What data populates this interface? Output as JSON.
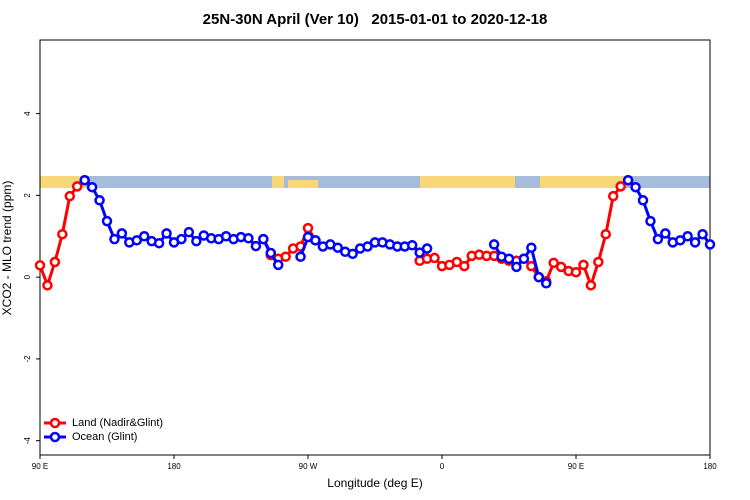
{
  "chart_data": {
    "type": "line",
    "title": "25N-30N April (Ver 10)   2015-01-01 to 2020-12-18",
    "x_label": "Longitude (deg E)",
    "y_label": "XCO2 - MLO trend (ppm)",
    "x": [
      90,
      95,
      100,
      105,
      110,
      115,
      120,
      125,
      130,
      135,
      140,
      145,
      150,
      155,
      160,
      165,
      170,
      175,
      180,
      185,
      190,
      195,
      200,
      205,
      210,
      215,
      220,
      225,
      230,
      235,
      240,
      245,
      250,
      255,
      260,
      265,
      270,
      275,
      280,
      285,
      290,
      295,
      300,
      305,
      310,
      315,
      320,
      325,
      330,
      335,
      340,
      345,
      350,
      355,
      360,
      365,
      370,
      375,
      380,
      385,
      390,
      395,
      400,
      405,
      410,
      415,
      420,
      425,
      430,
      435,
      440,
      445,
      450,
      455,
      460,
      465,
      470,
      475,
      480,
      485,
      490,
      495,
      500,
      505,
      510,
      515,
      520,
      525,
      530,
      535,
      540
    ],
    "series": [
      {
        "name": "Land (Nadir&Glint)",
        "color": "#ff0000",
        "values": [
          0.29,
          -0.2,
          0.37,
          1.05,
          1.98,
          2.22,
          2.37,
          null,
          null,
          null,
          null,
          null,
          null,
          null,
          null,
          null,
          null,
          null,
          null,
          null,
          null,
          null,
          null,
          null,
          null,
          null,
          null,
          null,
          null,
          null,
          0.93,
          0.54,
          0.45,
          0.5,
          0.7,
          0.75,
          1.2,
          0.9,
          null,
          null,
          null,
          null,
          null,
          null,
          null,
          null,
          null,
          null,
          null,
          null,
          null,
          0.4,
          0.45,
          0.47,
          0.27,
          0.3,
          0.37,
          0.27,
          0.52,
          0.55,
          0.52,
          0.52,
          0.45,
          0.4,
          0.4,
          0.45,
          0.27,
          0.0,
          -0.1,
          0.35,
          0.25,
          0.15,
          0.12,
          0.3,
          -0.2,
          0.37,
          1.05,
          1.98,
          2.22,
          2.37,
          null,
          null,
          null,
          null,
          null,
          null,
          null,
          null,
          null,
          null,
          null
        ]
      },
      {
        "name": "Ocean (Glint)",
        "color": "#0000ff",
        "values": [
          null,
          null,
          null,
          null,
          null,
          null,
          2.37,
          2.2,
          1.88,
          1.37,
          0.93,
          1.07,
          0.85,
          0.9,
          1.0,
          0.88,
          0.83,
          1.07,
          0.85,
          0.93,
          1.1,
          0.88,
          1.02,
          0.95,
          0.93,
          1.0,
          0.93,
          0.98,
          0.95,
          0.76,
          0.93,
          0.59,
          0.3,
          null,
          null,
          0.5,
          0.98,
          0.9,
          0.75,
          0.8,
          0.72,
          0.62,
          0.57,
          0.7,
          0.75,
          0.85,
          0.85,
          0.8,
          0.75,
          0.75,
          0.78,
          0.6,
          0.7,
          null,
          null,
          null,
          null,
          null,
          null,
          null,
          null,
          0.8,
          0.5,
          0.45,
          0.25,
          0.45,
          0.72,
          0.0,
          -0.15,
          null,
          null,
          null,
          null,
          null,
          null,
          null,
          null,
          null,
          null,
          2.37,
          2.2,
          1.88,
          1.37,
          0.93,
          1.07,
          0.85,
          0.9,
          1.0,
          0.85,
          1.05,
          0.8
        ]
      }
    ],
    "xlim": [
      90,
      540
    ],
    "xticks": [
      {
        "value": 90,
        "label": "90 E"
      },
      180,
      {
        "value": 270,
        "label": "90 W"
      },
      {
        "value": 360,
        "label": "0"
      },
      {
        "value": 450,
        "label": "90 E"
      },
      {
        "value": 540,
        "label": "180"
      }
    ],
    "ylim": [
      -4.35,
      5.8
    ],
    "yticks": [
      -4,
      -2,
      0,
      2,
      4
    ],
    "legend": "bottom-left"
  }
}
